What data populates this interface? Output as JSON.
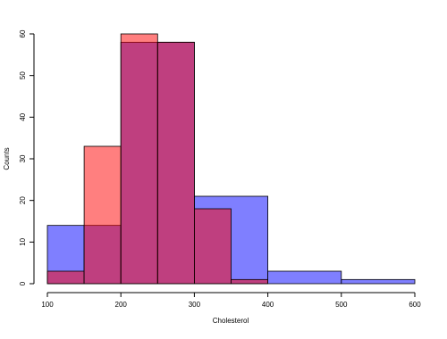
{
  "chart_data": {
    "type": "histogram",
    "xlabel": "Cholesterol",
    "ylabel": "Counts",
    "series": [
      {
        "color": "rgba(0,0,255,0.5)",
        "bins": [
          100,
          150,
          200,
          250,
          300,
          400,
          500,
          600
        ],
        "values": [
          14,
          14,
          58,
          58,
          21,
          3,
          1
        ]
      },
      {
        "color": "rgba(255,0,0,0.5)",
        "bins": [
          100,
          150,
          200,
          250,
          300,
          350,
          400
        ],
        "values": [
          3,
          33,
          60,
          58,
          18,
          1
        ]
      }
    ],
    "xlim": [
      100,
      600
    ],
    "xticks": [
      100,
      200,
      300,
      400,
      500,
      600
    ],
    "ylim": [
      0,
      60
    ],
    "yticks": [
      0,
      10,
      20,
      30,
      40,
      50,
      60
    ]
  }
}
